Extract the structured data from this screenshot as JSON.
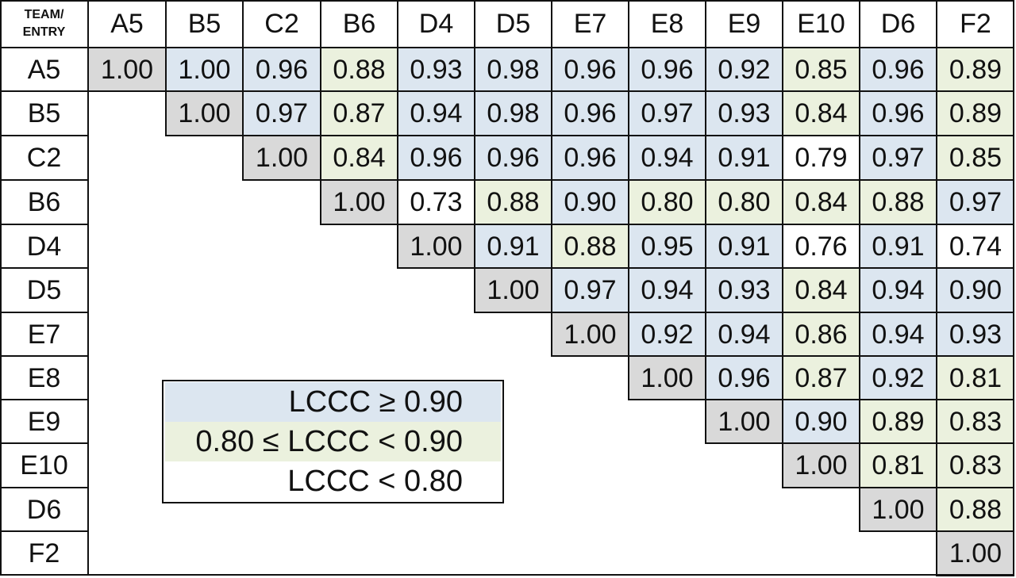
{
  "chart_data": {
    "type": "heatmap",
    "corner_label": [
      "TEAM/",
      "ENTRY"
    ],
    "row_labels": [
      "A5",
      "B5",
      "C2",
      "B6",
      "D4",
      "D5",
      "E7",
      "E8",
      "E9",
      "E10",
      "D6",
      "F2"
    ],
    "col_labels": [
      "A5",
      "B5",
      "C2",
      "B6",
      "D4",
      "D5",
      "E7",
      "E8",
      "E9",
      "E10",
      "D6",
      "F2"
    ],
    "values": [
      [
        "1.00",
        "1.00",
        "0.96",
        "0.88",
        "0.93",
        "0.98",
        "0.96",
        "0.96",
        "0.92",
        "0.85",
        "0.96",
        "0.89"
      ],
      [
        null,
        "1.00",
        "0.97",
        "0.87",
        "0.94",
        "0.98",
        "0.96",
        "0.97",
        "0.93",
        "0.84",
        "0.96",
        "0.89"
      ],
      [
        null,
        null,
        "1.00",
        "0.84",
        "0.96",
        "0.96",
        "0.96",
        "0.94",
        "0.91",
        "0.79",
        "0.97",
        "0.85"
      ],
      [
        null,
        null,
        null,
        "1.00",
        "0.73",
        "0.88",
        "0.90",
        "0.80",
        "0.80",
        "0.84",
        "0.88",
        "0.97"
      ],
      [
        null,
        null,
        null,
        null,
        "1.00",
        "0.91",
        "0.88",
        "0.95",
        "0.91",
        "0.76",
        "0.91",
        "0.74"
      ],
      [
        null,
        null,
        null,
        null,
        null,
        "1.00",
        "0.97",
        "0.94",
        "0.93",
        "0.84",
        "0.94",
        "0.90"
      ],
      [
        null,
        null,
        null,
        null,
        null,
        null,
        "1.00",
        "0.92",
        "0.94",
        "0.86",
        "0.94",
        "0.93"
      ],
      [
        null,
        null,
        null,
        null,
        null,
        null,
        null,
        "1.00",
        "0.96",
        "0.87",
        "0.92",
        "0.81"
      ],
      [
        null,
        null,
        null,
        null,
        null,
        null,
        null,
        null,
        "1.00",
        "0.90",
        "0.89",
        "0.83"
      ],
      [
        null,
        null,
        null,
        null,
        null,
        null,
        null,
        null,
        null,
        "1.00",
        "0.81",
        "0.83"
      ],
      [
        null,
        null,
        null,
        null,
        null,
        null,
        null,
        null,
        null,
        null,
        "1.00",
        "0.88"
      ],
      [
        null,
        null,
        null,
        null,
        null,
        null,
        null,
        null,
        null,
        null,
        null,
        "1.00"
      ]
    ],
    "legend": [
      {
        "label": "LCCC ≥ 0.90",
        "color": "#dce6f0"
      },
      {
        "label": "0.80 ≤ LCCC < 0.90",
        "color": "#ebf1de"
      },
      {
        "label": "LCCC < 0.80",
        "color": "#ffffff"
      }
    ],
    "colors": {
      "diagonal": "#d9d9d9",
      "high": "#dce6f0",
      "mid": "#ebf1de",
      "low": "#ffffff",
      "line": "#111111"
    }
  }
}
